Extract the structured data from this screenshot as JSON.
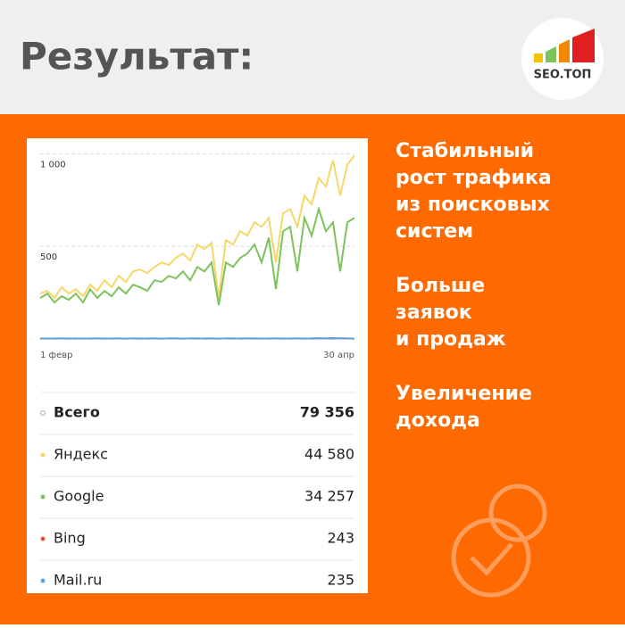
{
  "header": {
    "title": "Результат:",
    "logo": "SEO.ТОП"
  },
  "chart_data": {
    "type": "line",
    "categories": [
      "1 февр",
      null,
      null,
      null,
      null,
      null,
      null,
      null,
      null,
      null,
      null,
      null,
      null,
      null,
      null,
      null,
      null,
      null,
      null,
      null,
      null,
      null,
      null,
      null,
      null,
      null,
      null,
      null,
      null,
      null,
      null,
      null,
      null,
      null,
      null,
      null,
      null,
      null,
      null,
      null,
      null,
      null,
      null,
      null,
      "30 апр"
    ],
    "ylim": [
      0,
      1060
    ],
    "yticks": [
      500,
      {
        "value": 1000,
        "label": "1 000"
      }
    ],
    "grid": true,
    "series": [
      {
        "name": "Яндекс",
        "color": "#f5d76a",
        "total": "44 580",
        "values": [
          245,
          260,
          221,
          279,
          245,
          269,
          231,
          293,
          260,
          317,
          279,
          341,
          308,
          365,
          375,
          356,
          389,
          413,
          399,
          438,
          462,
          423,
          510,
          486,
          519,
          221,
          534,
          510,
          582,
          558,
          630,
          606,
          654,
          413,
          678,
          702,
          606,
          774,
          726,
          870,
          822,
          966,
          774,
          942,
          990
        ]
      },
      {
        "name": "Google",
        "color": "#7dc35b",
        "total": "34 257",
        "values": [
          221,
          245,
          197,
          231,
          212,
          245,
          197,
          269,
          221,
          260,
          231,
          279,
          245,
          293,
          279,
          260,
          317,
          308,
          341,
          327,
          365,
          317,
          389,
          365,
          413,
          183,
          413,
          389,
          438,
          462,
          510,
          413,
          548,
          269,
          582,
          606,
          365,
          654,
          558,
          702,
          582,
          630,
          365,
          630,
          654
        ]
      },
      {
        "name": "Bing",
        "color": "#e8553e",
        "total": "243",
        "values": [
          3,
          2,
          3,
          3,
          2,
          3,
          2,
          3,
          3,
          2,
          3,
          3,
          2,
          3,
          2,
          3,
          3,
          2,
          3,
          3,
          2,
          3,
          3,
          2,
          3,
          2,
          3,
          3,
          2,
          3,
          3,
          2,
          3,
          3,
          2,
          3,
          3,
          2,
          3,
          4,
          3,
          5,
          3,
          3,
          2
        ]
      },
      {
        "name": "Mail.ru",
        "color": "#5aa6e0",
        "total": "235",
        "values": [
          2,
          3,
          2,
          3,
          3,
          2,
          3,
          2,
          3,
          3,
          2,
          3,
          2,
          3,
          3,
          2,
          3,
          2,
          3,
          3,
          2,
          3,
          2,
          3,
          3,
          2,
          3,
          2,
          3,
          3,
          2,
          3,
          2,
          3,
          3,
          2,
          3,
          3,
          2,
          3,
          3,
          2,
          4,
          3,
          2
        ]
      }
    ],
    "total": {
      "name": "Всего",
      "total": "79 356"
    }
  },
  "bullets": [
    [
      "Стабильный",
      "рост трафика",
      "из поисковых",
      "систем"
    ],
    [
      "Больше",
      "заявок",
      "и продаж"
    ],
    [
      "Увеличение",
      "дохода"
    ]
  ]
}
